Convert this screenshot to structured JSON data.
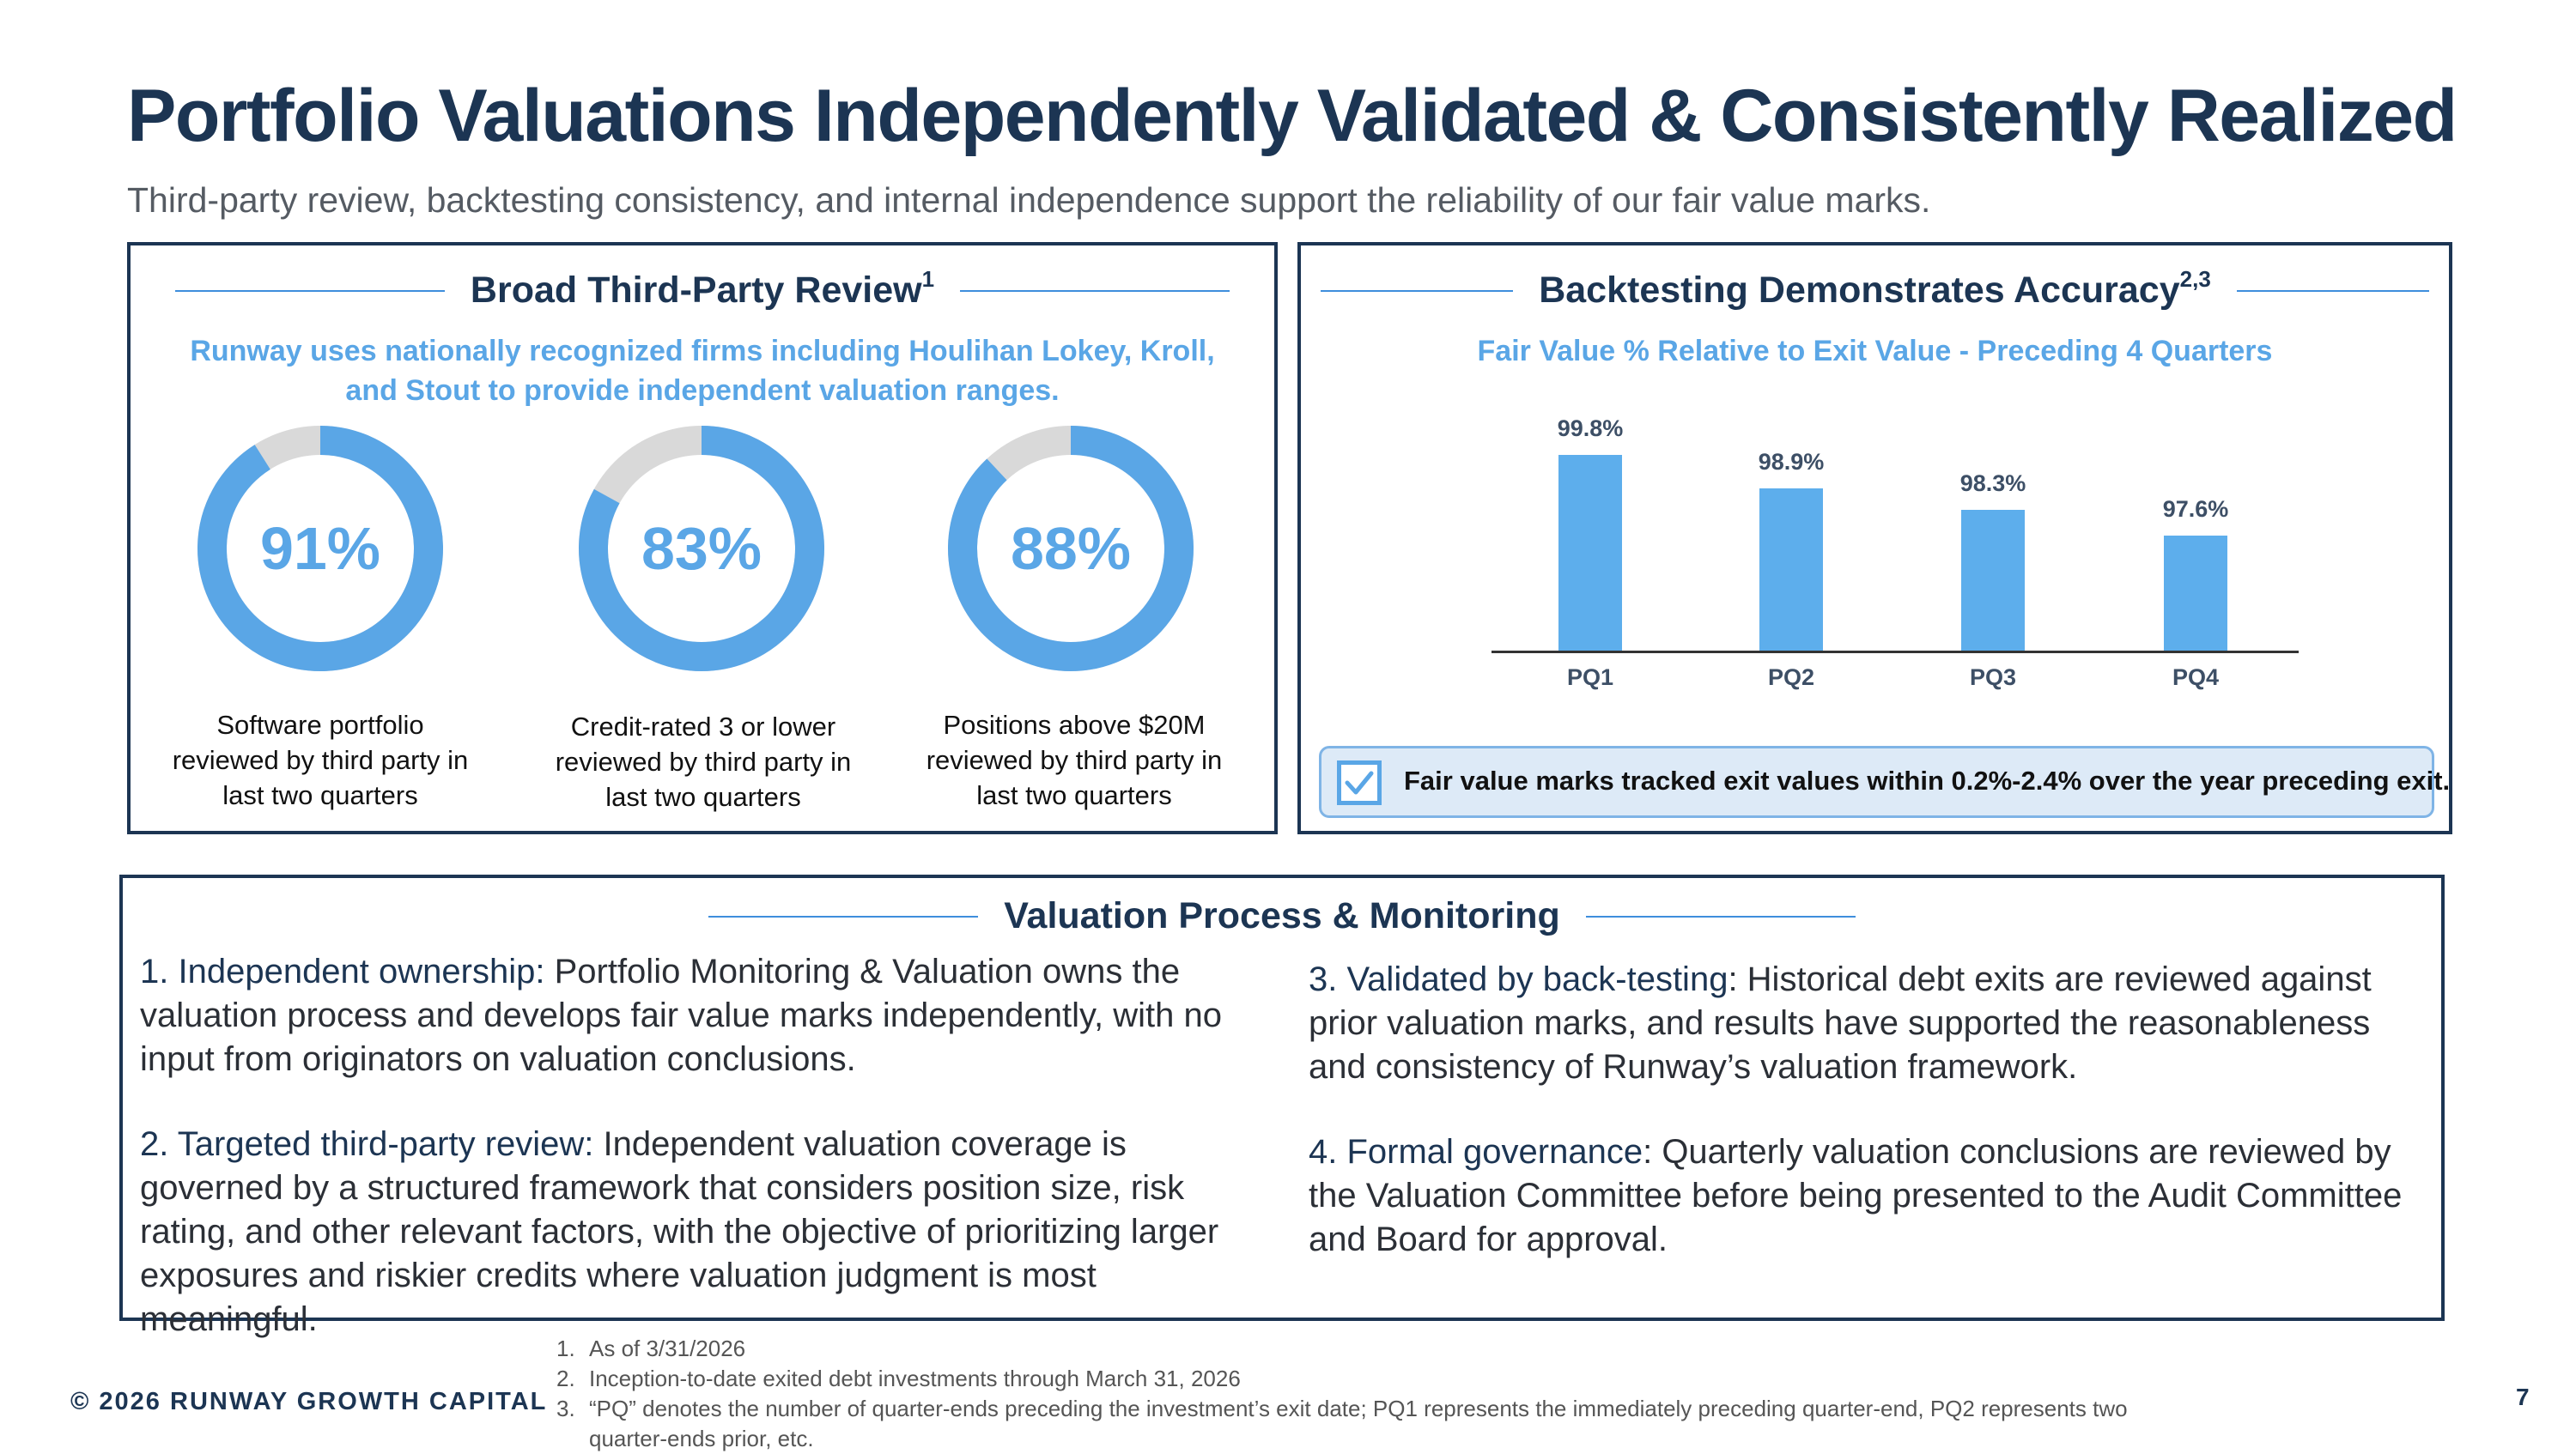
{
  "title": "Portfolio Valuations Independently Validated & Consistently Realized",
  "subtitle": "Third-party review, backtesting consistency, and internal independence support the reliability of our fair value marks.",
  "left_panel": {
    "heading": "Broad Third-Party Review",
    "heading_sup": "1",
    "description_line1": "Runway uses nationally recognized firms including Houlihan Lokey, Kroll,",
    "description_line2": "and Stout to provide independent valuation ranges.",
    "donuts": [
      {
        "value": 91,
        "label_text": "91%",
        "caption": [
          "Software portfolio",
          "reviewed by third party in",
          "last two quarters"
        ]
      },
      {
        "value": 83,
        "label_text": "83%",
        "caption": [
          "Credit-rated 3 or lower",
          "reviewed by third party in",
          "last two quarters"
        ]
      },
      {
        "value": 88,
        "label_text": "88%",
        "caption": [
          "Positions above $20M",
          "reviewed by third party in",
          "last two quarters"
        ]
      }
    ],
    "colors": {
      "filled": "#5aa6e6",
      "remainder": "#d9d9d9"
    }
  },
  "right_panel": {
    "heading": "Backtesting Demonstrates Accuracy",
    "heading_sup": "2,3",
    "chart_title": "Fair Value % Relative to Exit Value - Preceding 4 Quarters",
    "callout": "Fair value marks tracked exit values within 0.2%-2.4% over the year preceding exit.",
    "checkbox_icon": "checkmark-icon"
  },
  "chart_data": {
    "type": "bar",
    "title": "Fair Value % Relative to Exit Value - Preceding 4 Quarters",
    "categories": [
      "PQ1",
      "PQ2",
      "PQ3",
      "PQ4"
    ],
    "values": [
      99.8,
      98.9,
      98.3,
      97.6
    ],
    "value_labels": [
      "99.8%",
      "98.9%",
      "98.3%",
      "97.6%"
    ],
    "xlabel": "",
    "ylabel": "",
    "color": "#5daeec",
    "grid": false
  },
  "bottom_panel": {
    "heading": "Valuation Process & Monitoring",
    "items": [
      {
        "lead": "1. Independent ownership:",
        "text": " Portfolio Monitoring & Valuation owns the valuation process and develops fair value marks independently, with no input from originators on valuation conclusions."
      },
      {
        "lead": "2. Targeted third-party review:",
        "text": " Independent valuation coverage is governed by a structured framework that considers position size, risk rating, and other relevant factors, with the objective of prioritizing larger exposures and riskier credits where valuation judgment is most meaningful."
      },
      {
        "lead": "3. Validated by back-testing",
        "text": ": Historical debt exits are reviewed against prior valuation marks, and results have supported the reasonableness and consistency of Runway’s valuation framework."
      },
      {
        "lead": "4. Formal governance",
        "text": ": Quarterly valuation conclusions are reviewed by the Valuation Committee before being presented to the Audit Committee and Board for approval."
      }
    ]
  },
  "footnotes": [
    {
      "num": "1.",
      "text": "As of 3/31/2026"
    },
    {
      "num": "2.",
      "text": "Inception-to-date exited debt investments through March 31, 2026"
    },
    {
      "num": "3.",
      "text": "“PQ” denotes the number of quarter-ends preceding the investment’s exit date; PQ1 represents the immediately preceding quarter-end, PQ2 represents two"
    },
    {
      "num": "",
      "text": "quarter-ends prior, etc."
    }
  ],
  "copyright": "© 2026 RUNWAY GROWTH CAPITAL",
  "page_number": "7"
}
